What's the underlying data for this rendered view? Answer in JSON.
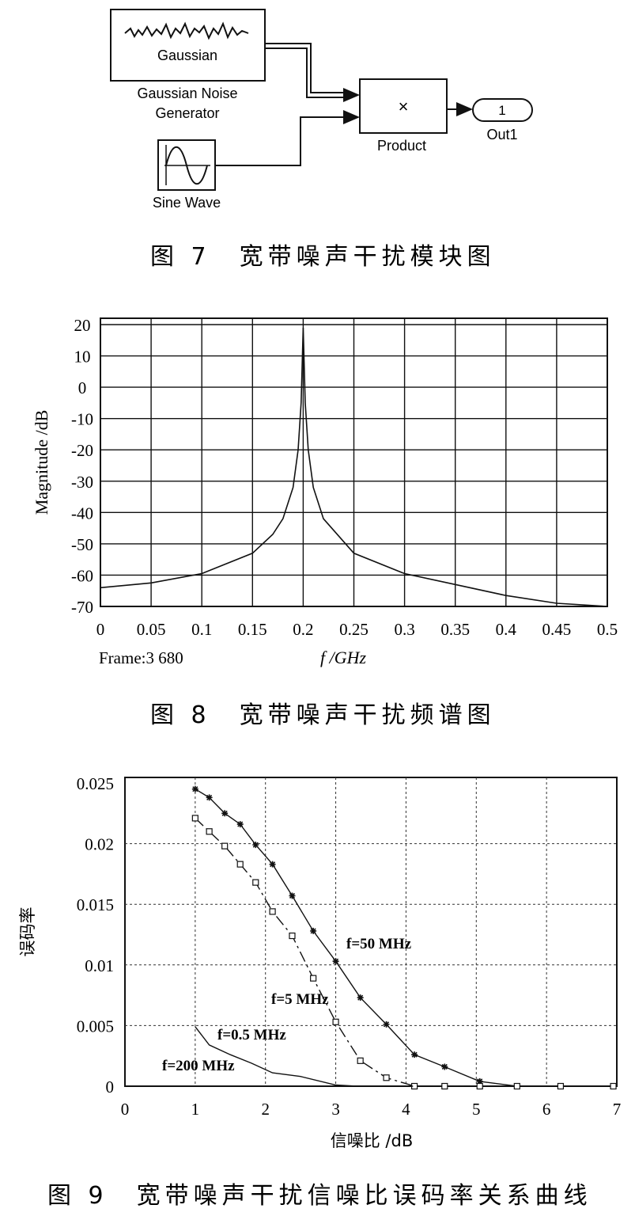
{
  "figure7": {
    "caption": "图 7　宽带噪声干扰模块图",
    "blocks": {
      "noise_inner": "Gaussian",
      "noise_label_line1": "Gaussian Noise",
      "noise_label_line2": "Generator",
      "product_symbol": "×",
      "product_label": "Product",
      "out_number": "1",
      "out_label": "Out1",
      "sine_label": "Sine Wave"
    }
  },
  "figure8": {
    "caption": "图 8　宽带噪声干扰频谱图",
    "frame_text": "Frame:3 680",
    "chart_data": {
      "type": "line",
      "xlabel": "f /GHz",
      "ylabel": "Magnitude /dB",
      "xlim": [
        0,
        0.5
      ],
      "ylim": [
        -70,
        20
      ],
      "grid": true,
      "xticks": [
        "0",
        "0.05",
        "0.1",
        "0.15",
        "0.2",
        "0.25",
        "0.3",
        "0.35",
        "0.4",
        "0.45",
        "0.5"
      ],
      "yticks": [
        "20",
        "10",
        "0",
        "-10",
        "-20",
        "-30",
        "-40",
        "-50",
        "-60",
        "-70"
      ],
      "series": [
        {
          "x": [
            0,
            0.05,
            0.1,
            0.15,
            0.17,
            0.18,
            0.19,
            0.195,
            0.198,
            0.2,
            0.202,
            0.205,
            0.21,
            0.22,
            0.25,
            0.3,
            0.35,
            0.4,
            0.45,
            0.5
          ],
          "y": [
            -64,
            -62.5,
            -59.5,
            -53,
            -47,
            -42,
            -32,
            -20,
            -5,
            19,
            -5,
            -20,
            -32,
            -42,
            -53,
            -59.5,
            -63,
            -66.5,
            -69,
            -70
          ]
        }
      ]
    }
  },
  "figure9": {
    "caption": "图 9　宽带噪声干扰信噪比误码率关系曲线",
    "annotations": [
      "f=50 MHz",
      "f=5 MHz",
      "f=0.5 MHz",
      "f=200 MHz"
    ],
    "chart_data": {
      "type": "line",
      "xlabel": "信噪比 /dB",
      "ylabel": "误码率",
      "xlim": [
        0,
        7
      ],
      "ylim": [
        0,
        0.025
      ],
      "grid": true,
      "xticks": [
        "0",
        "1",
        "2",
        "3",
        "4",
        "5",
        "6",
        "7"
      ],
      "yticks": [
        "0.025",
        "0.02",
        "0.015",
        "0.01",
        "0.005",
        "0"
      ],
      "series": [
        {
          "name": "f=50 MHz",
          "x": [
            1,
            1.2,
            1.42,
            1.64,
            1.86,
            2.1,
            2.38,
            2.68,
            3.0,
            3.35,
            3.72,
            4.12,
            4.55,
            5.05,
            5.58,
            6.2,
            6.95
          ],
          "y": [
            0.0245,
            0.0238,
            0.0225,
            0.0216,
            0.0199,
            0.0183,
            0.0157,
            0.0128,
            0.0103,
            0.0073,
            0.0051,
            0.0026,
            0.0016,
            0.0004,
            0,
            0,
            0
          ]
        },
        {
          "name": "f=5 MHz",
          "x": [
            1,
            1.2,
            1.42,
            1.64,
            1.86,
            2.1,
            2.38,
            2.68,
            3.0,
            3.35,
            3.72,
            4.12,
            4.55,
            5.05,
            5.58,
            6.2,
            6.95
          ],
          "y": [
            0.0221,
            0.021,
            0.0198,
            0.0183,
            0.0168,
            0.0144,
            0.0124,
            0.0089,
            0.0053,
            0.0021,
            0.0007,
            0,
            0,
            0,
            0,
            0,
            0
          ]
        },
        {
          "name": "f=0.5 MHz",
          "x": [
            1,
            1.2,
            1.5,
            1.8,
            2.1,
            2.5,
            3.0,
            3.3,
            3.7,
            4.1
          ],
          "y": [
            0.0049,
            0.0034,
            0.0026,
            0.0019,
            0.0011,
            0.0008,
            0.0001,
            0,
            0,
            0
          ]
        }
      ]
    }
  }
}
